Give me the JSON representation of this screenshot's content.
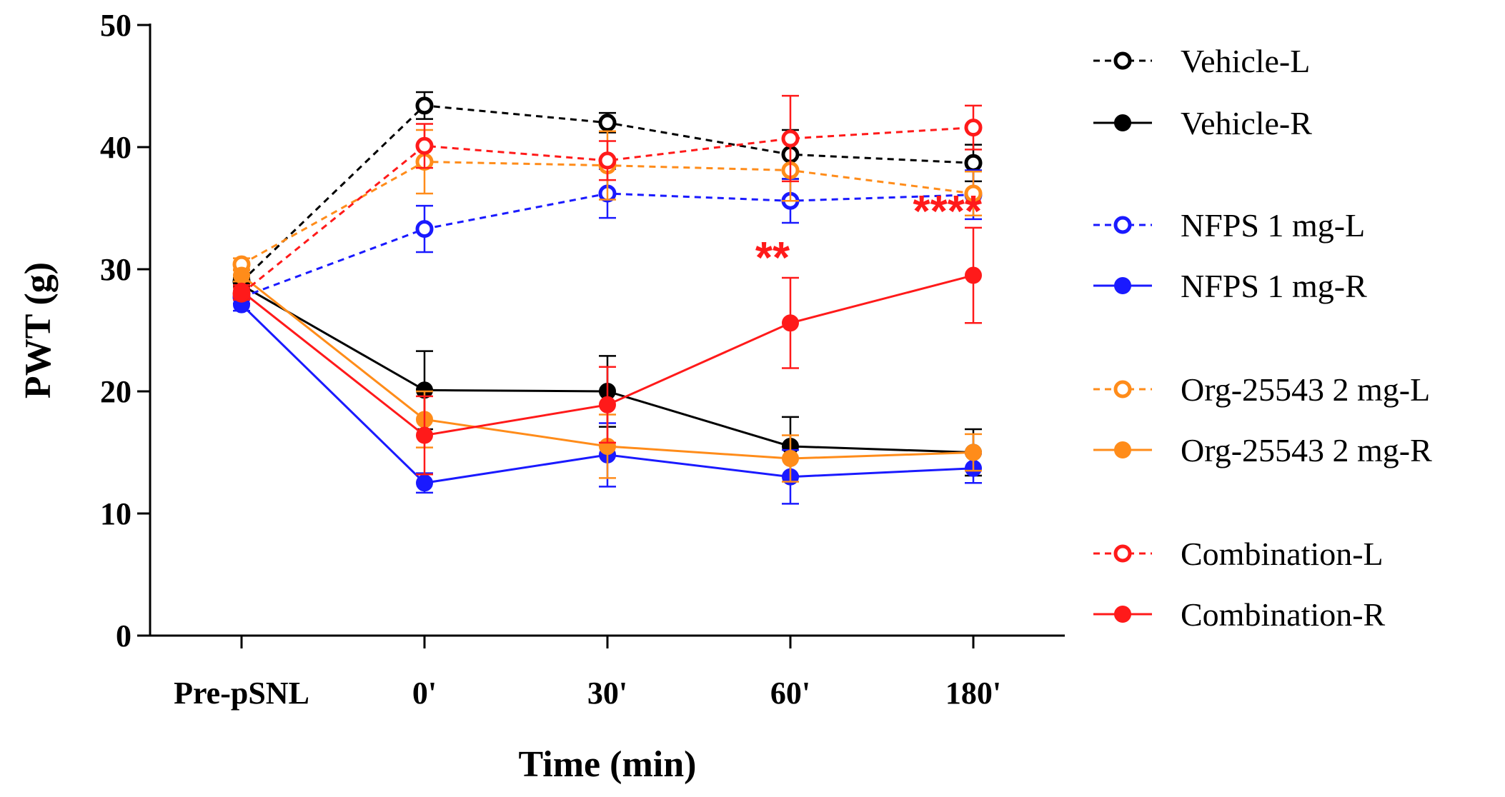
{
  "chart_data": {
    "type": "line",
    "title": "",
    "xlabel": "Time (min)",
    "ylabel": "PWT (g)",
    "categories": [
      "Pre-pSNL",
      "0'",
      "30'",
      "60'",
      "180'"
    ],
    "ylim": [
      0,
      50
    ],
    "yticks": [
      0,
      10,
      20,
      30,
      40,
      50
    ],
    "grid": false,
    "legend_position": "right",
    "series": [
      {
        "name": "Vehicle-L",
        "color": "#000000",
        "filled": false,
        "dashed": true,
        "values": [
          29.0,
          43.4,
          42.0,
          39.4,
          38.7
        ],
        "errors": [
          0.5,
          1.1,
          0.8,
          2.0,
          1.5
        ]
      },
      {
        "name": "Vehicle-R",
        "color": "#000000",
        "filled": true,
        "dashed": false,
        "values": [
          28.7,
          20.1,
          20.0,
          15.5,
          15.0
        ],
        "errors": [
          0.6,
          3.2,
          2.9,
          2.4,
          1.9
        ]
      },
      {
        "name": "NFPS 1 mg-L",
        "color": "#1a1aff",
        "filled": false,
        "dashed": true,
        "values": [
          27.7,
          33.3,
          36.2,
          35.6,
          36.1
        ],
        "errors": [
          0.5,
          1.9,
          2.0,
          1.8,
          2.0
        ]
      },
      {
        "name": "NFPS 1 mg-R",
        "color": "#1a1aff",
        "filled": true,
        "dashed": false,
        "values": [
          27.1,
          12.5,
          14.8,
          13.0,
          13.7
        ],
        "errors": [
          0.5,
          0.8,
          2.6,
          2.2,
          1.2
        ]
      },
      {
        "name": "Org-25543 2 mg-L",
        "color": "#ff8c1a",
        "filled": false,
        "dashed": true,
        "values": [
          30.4,
          38.8,
          38.5,
          38.1,
          36.2
        ],
        "errors": [
          0.5,
          2.6,
          2.8,
          2.5,
          1.8
        ]
      },
      {
        "name": "Org-25543 2 mg-R",
        "color": "#ff8c1a",
        "filled": true,
        "dashed": false,
        "values": [
          29.5,
          17.7,
          15.5,
          14.5,
          15.0
        ],
        "errors": [
          0.5,
          2.3,
          2.6,
          1.9,
          1.5
        ]
      },
      {
        "name": "Combination-L",
        "color": "#ff1a1a",
        "filled": false,
        "dashed": true,
        "values": [
          28.0,
          40.1,
          38.9,
          40.7,
          41.6
        ],
        "errors": [
          0.5,
          1.8,
          1.6,
          3.5,
          1.8
        ]
      },
      {
        "name": "Combination-R",
        "color": "#ff1a1a",
        "filled": true,
        "dashed": false,
        "values": [
          28.2,
          16.4,
          18.9,
          25.6,
          29.5
        ],
        "errors": [
          0.5,
          3.2,
          3.1,
          3.7,
          3.9
        ]
      }
    ],
    "annotations": [
      {
        "text": "**",
        "category": "60'",
        "y": 31.0,
        "color": "#ff1a1a"
      },
      {
        "text": "****",
        "category": "180'",
        "y": 34.8,
        "color": "#ff1a1a"
      }
    ]
  }
}
